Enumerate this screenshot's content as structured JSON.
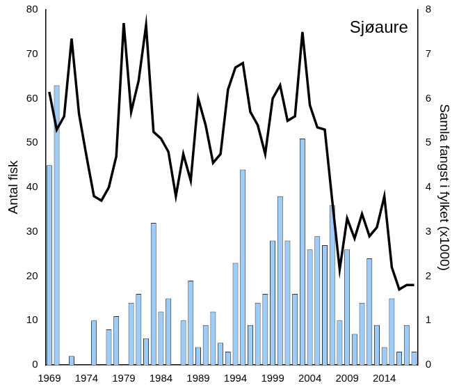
{
  "chart_data": {
    "type": "bar",
    "title": "Sjøaure",
    "y_label": "Antal fisk",
    "y2_label": "Samla fangst i fylket (x1000)",
    "categories": [
      "1969",
      null,
      null,
      null,
      null,
      "1974",
      null,
      null,
      null,
      null,
      "1979",
      null,
      null,
      null,
      null,
      "1984",
      null,
      null,
      null,
      null,
      "1989",
      null,
      null,
      null,
      null,
      "1994",
      null,
      null,
      null,
      null,
      "1999",
      null,
      null,
      null,
      null,
      "2004",
      null,
      null,
      null,
      null,
      "2009",
      null,
      null,
      null,
      null,
      "2014",
      null,
      null,
      null,
      null
    ],
    "series": [
      {
        "type": "bar",
        "color": "#99ccff",
        "values": [
          45,
          63,
          0,
          2,
          0,
          0,
          10,
          0,
          8,
          11,
          0,
          14,
          16,
          6,
          32,
          12,
          15,
          0,
          10,
          19,
          4,
          9,
          12,
          5,
          3,
          23,
          44,
          9,
          14,
          16,
          28,
          38,
          28,
          16,
          51,
          26,
          29,
          27,
          36,
          10,
          26,
          7,
          14,
          24,
          9,
          4,
          15,
          3,
          9,
          3
        ]
      },
      {
        "type": "line",
        "color": "#000000",
        "axis": "y2",
        "values": [
          6.15,
          5.3,
          5.6,
          7.35,
          5.65,
          4.7,
          3.8,
          3.7,
          4.0,
          4.7,
          7.7,
          5.7,
          6.4,
          7.65,
          5.25,
          5.1,
          4.8,
          3.8,
          4.75,
          4.15,
          6.0,
          5.4,
          4.55,
          4.75,
          6.2,
          6.7,
          6.8,
          5.7,
          5.4,
          4.75,
          6.0,
          6.3,
          5.5,
          5.6,
          7.5,
          5.85,
          5.35,
          5.3,
          3.7,
          2.15,
          3.3,
          2.85,
          3.4,
          2.9,
          3.1,
          3.8,
          2.2,
          1.7,
          1.8,
          1.8
        ]
      }
    ],
    "ylim": [
      0,
      80
    ],
    "yticks": [
      0,
      10,
      20,
      30,
      40,
      50,
      60,
      70,
      80
    ],
    "y2lim": [
      0,
      8
    ],
    "y2ticks": [
      0,
      1,
      2,
      3,
      4,
      5,
      6,
      7,
      8
    ],
    "grid": false
  }
}
